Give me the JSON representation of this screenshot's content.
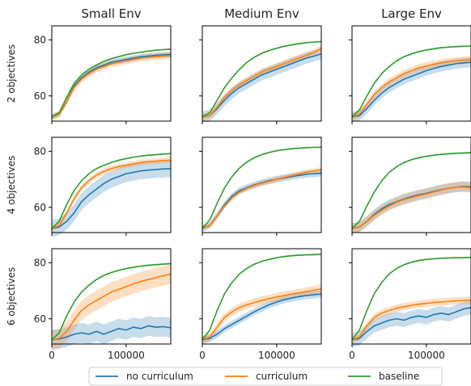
{
  "chart_data": {
    "type": "line",
    "layout": "3x3 grid of line charts with shaded uncertainty bands",
    "columns": [
      "Small Env",
      "Medium Env",
      "Large Env"
    ],
    "rows": [
      "2 objectives",
      "4 objectives",
      "6 objectives"
    ],
    "xlim": [
      0,
      160000
    ],
    "ylim": [
      51,
      85
    ],
    "xticks": [
      0,
      100000
    ],
    "xtick_labels": [
      "0",
      "100000"
    ],
    "yticks": [
      60,
      80
    ],
    "ytick_labels": [
      "60",
      "80"
    ],
    "legend": {
      "placement": "bottom-center"
    },
    "series_styles": [
      {
        "name": "no curriculum",
        "color": "#1f77b4"
      },
      {
        "name": "curriculum",
        "color": "#ff7f0e"
      },
      {
        "name": "baseline",
        "color": "#2ca02c"
      }
    ],
    "x": [
      0,
      10000,
      20000,
      30000,
      40000,
      50000,
      60000,
      70000,
      80000,
      90000,
      100000,
      110000,
      120000,
      130000,
      140000,
      150000,
      160000
    ],
    "panels": [
      {
        "row": "2 objectives",
        "column": "Small Env",
        "series": [
          {
            "name": "no curriculum",
            "y": [
              52.5,
              53.5,
              58,
              63.5,
              66.5,
              68.5,
              70,
              71,
              72,
              72.5,
              73,
              73.5,
              74,
              74.2,
              74.5,
              74.7,
              74.8
            ],
            "band": 1.0
          },
          {
            "name": "curriculum",
            "y": [
              52.5,
              53.5,
              58,
              63,
              66,
              68,
              69.5,
              70.5,
              71.5,
              72,
              72.5,
              73,
              73.5,
              73.8,
              74,
              74.2,
              74.3
            ],
            "band": 1.2
          },
          {
            "name": "baseline",
            "y": [
              52.5,
              54,
              59.5,
              64.5,
              67.5,
              69.5,
              71,
              72.3,
              73.3,
              74,
              74.7,
              75.2,
              75.6,
              76,
              76.3,
              76.5,
              76.7
            ],
            "band": 0.3
          }
        ]
      },
      {
        "row": "2 objectives",
        "column": "Medium Env",
        "series": [
          {
            "name": "no curriculum",
            "y": [
              52.5,
              53,
              55.5,
              58.5,
              61,
              63,
              64.5,
              66,
              67.5,
              68.5,
              69.5,
              70.5,
              71.5,
              72.5,
              73.5,
              74.2,
              75
            ],
            "band": 2.0
          },
          {
            "name": "curriculum",
            "y": [
              52.5,
              53,
              56,
              59.5,
              62,
              64,
              65.5,
              67,
              68.5,
              69.5,
              70.5,
              71.5,
              72.5,
              73.5,
              74.5,
              75.5,
              77
            ],
            "band": 1.2
          },
          {
            "name": "baseline",
            "y": [
              52.5,
              54,
              58.5,
              63,
              66.5,
              69.5,
              72,
              73.8,
              75.2,
              76.2,
              77,
              77.7,
              78.2,
              78.6,
              79,
              79.2,
              79.4
            ],
            "band": 0.3
          }
        ]
      },
      {
        "row": "2 objectives",
        "column": "Large Env",
        "series": [
          {
            "name": "no curriculum",
            "y": [
              52.5,
              53,
              55.5,
              58.5,
              61,
              63,
              64.5,
              66,
              67,
              68,
              69,
              69.8,
              70.5,
              71,
              71.5,
              71.8,
              72
            ],
            "band": 1.8
          },
          {
            "name": "curriculum",
            "y": [
              52.5,
              53.5,
              57,
              60.5,
              63,
              65,
              66.5,
              68,
              69,
              70,
              70.7,
              71.3,
              71.8,
              72.2,
              72.5,
              72.7,
              72.9
            ],
            "band": 1.3
          },
          {
            "name": "baseline",
            "y": [
              52.5,
              55,
              60,
              64.5,
              68,
              70.5,
              72.5,
              74,
              75,
              75.8,
              76.4,
              76.8,
              77.2,
              77.4,
              77.6,
              77.7,
              77.8
            ],
            "band": 0.3
          }
        ]
      },
      {
        "row": "4 objectives",
        "column": "Small Env",
        "series": [
          {
            "name": "no curriculum",
            "y": [
              52.5,
              53,
              55,
              58,
              62,
              64.5,
              66.5,
              68.5,
              70,
              71,
              72,
              72.5,
              73,
              73.3,
              73.5,
              73.7,
              73.8
            ],
            "band": 3.0
          },
          {
            "name": "curriculum",
            "y": [
              52.5,
              53.5,
              58,
              63,
              67,
              69.5,
              71.5,
              72.8,
              73.8,
              74.5,
              75,
              75.5,
              76,
              76.3,
              76.5,
              76.7,
              76.8
            ],
            "band": 1.0
          },
          {
            "name": "baseline",
            "y": [
              52.5,
              55,
              61,
              66,
              69.5,
              72,
              73.8,
              75,
              76,
              76.8,
              77.4,
              77.9,
              78.3,
              78.6,
              78.8,
              79,
              79.2
            ],
            "band": 0.3
          }
        ]
      },
      {
        "row": "4 objectives",
        "column": "Medium Env",
        "series": [
          {
            "name": "no curriculum",
            "y": [
              52.5,
              53.5,
              57,
              61,
              64,
              66,
              67,
              68,
              68.8,
              69.5,
              70,
              70.5,
              71,
              71.4,
              71.8,
              72,
              72.2
            ],
            "band": 1.2
          },
          {
            "name": "curriculum",
            "y": [
              52.5,
              53.5,
              57,
              60.5,
              63.5,
              65.5,
              66.8,
              67.8,
              68.6,
              69.3,
              70,
              70.7,
              71.3,
              71.9,
              72.5,
              73,
              73.5
            ],
            "band": 0.9
          },
          {
            "name": "baseline",
            "y": [
              52.5,
              55.5,
              61.5,
              67,
              71,
              74,
              76.2,
              77.7,
              78.8,
              79.6,
              80.2,
              80.6,
              80.9,
              81.1,
              81.3,
              81.4,
              81.5
            ],
            "band": 0.3
          }
        ]
      },
      {
        "row": "4 objectives",
        "column": "Large Env",
        "series": [
          {
            "name": "no curriculum",
            "y": [
              52.5,
              53,
              55,
              57.5,
              59.5,
              61,
              62,
              63,
              63.8,
              64.5,
              65,
              65.7,
              66.3,
              66.8,
              67.2,
              67.5,
              67.3
            ],
            "band": 1.8
          },
          {
            "name": "curriculum",
            "y": [
              52.5,
              53,
              55,
              57.2,
              59,
              60.5,
              61.8,
              62.8,
              63.5,
              64.2,
              64.8,
              65.5,
              66.2,
              66.8,
              67.2,
              67.3,
              67
            ],
            "band": 1.8
          },
          {
            "name": "baseline",
            "y": [
              52.5,
              55,
              60.5,
              65.5,
              69.5,
              72.5,
              74.5,
              76,
              77,
              77.7,
              78.2,
              78.6,
              78.9,
              79.1,
              79.3,
              79.4,
              79.5
            ],
            "band": 0.3
          }
        ]
      },
      {
        "row": "6 objectives",
        "column": "Small Env",
        "series": [
          {
            "name": "no curriculum",
            "y": [
              52.5,
              52.8,
              53.5,
              54.5,
              55,
              54.5,
              55.5,
              54.5,
              55.5,
              56.5,
              56,
              57,
              56.5,
              57.5,
              57,
              57.2,
              56.8
            ],
            "band": 3.5
          },
          {
            "name": "curriculum",
            "y": [
              52.5,
              53,
              55.5,
              59.5,
              63,
              65,
              66.5,
              68,
              69.5,
              70.5,
              71.5,
              72.5,
              73.3,
              74,
              74.7,
              75.3,
              76
            ],
            "band": 3.5
          },
          {
            "name": "baseline",
            "y": [
              52.5,
              55,
              61,
              66,
              69.5,
              72,
              74,
              75.5,
              76.5,
              77.3,
              77.9,
              78.4,
              78.8,
              79.1,
              79.3,
              79.5,
              79.7
            ],
            "band": 0.3
          }
        ]
      },
      {
        "row": "6 objectives",
        "column": "Medium Env",
        "series": [
          {
            "name": "no curriculum",
            "y": [
              52.5,
              53,
              54.5,
              56.5,
              58,
              59.5,
              61,
              62.5,
              63.8,
              65,
              66,
              66.8,
              67.4,
              67.9,
              68.3,
              68.6,
              68.8
            ],
            "band": 1.3
          },
          {
            "name": "curriculum",
            "y": [
              52.5,
              53.5,
              57,
              60.5,
              62.5,
              64,
              65,
              65.8,
              66.5,
              67.2,
              67.8,
              68.3,
              68.8,
              69.2,
              69.7,
              70.2,
              70.7
            ],
            "band": 1.5
          },
          {
            "name": "baseline",
            "y": [
              52.5,
              56,
              63,
              69,
              73,
              76,
              78,
              79.5,
              80.5,
              81.2,
              81.8,
              82.2,
              82.5,
              82.7,
              82.8,
              82.9,
              83
            ],
            "band": 0.3
          }
        ]
      },
      {
        "row": "6 objectives",
        "column": "Large Env",
        "series": [
          {
            "name": "no curriculum",
            "y": [
              52.5,
              53,
              55.5,
              57.5,
              58.5,
              59.5,
              60,
              59.5,
              60.5,
              61,
              60.5,
              61.5,
              62,
              61.5,
              62.5,
              63.5,
              64
            ],
            "band": 2.5
          },
          {
            "name": "curriculum",
            "y": [
              52.5,
              53.5,
              57.5,
              60.5,
              62,
              63,
              63.8,
              64.3,
              64.8,
              65.2,
              65.5,
              65.8,
              66,
              66.2,
              66.4,
              66.5,
              66.6
            ],
            "band": 1.3
          },
          {
            "name": "baseline",
            "y": [
              52.5,
              56,
              63,
              69,
              73,
              76,
              78,
              79.3,
              80.2,
              80.8,
              81.2,
              81.4,
              81.6,
              81.7,
              81.8,
              81.8,
              81.9
            ],
            "band": 0.3
          }
        ]
      }
    ]
  }
}
